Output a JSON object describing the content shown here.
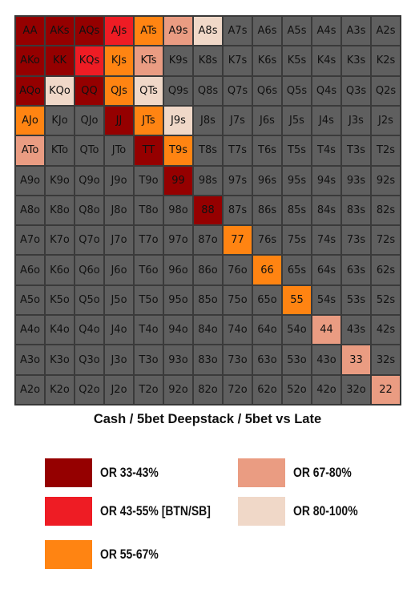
{
  "chart_data": {
    "type": "heatmap",
    "title": "Cash / 5bet Deepstack / 5bet vs Late",
    "colors": {
      "none": "#5f5f5f",
      "c1": "#950000",
      "c2": "#ee1c24",
      "c3": "#ff8412",
      "c4": "#ea9c82",
      "c5": "#f0d8c8"
    },
    "rows": [
      [
        "AA",
        "AKs",
        "AQs",
        "AJs",
        "ATs",
        "A9s",
        "A8s",
        "A7s",
        "A6s",
        "A5s",
        "A4s",
        "A3s",
        "A2s"
      ],
      [
        "AKo",
        "KK",
        "KQs",
        "KJs",
        "KTs",
        "K9s",
        "K8s",
        "K7s",
        "K6s",
        "K5s",
        "K4s",
        "K3s",
        "K2s"
      ],
      [
        "AQo",
        "KQo",
        "QQ",
        "QJs",
        "QTs",
        "Q9s",
        "Q8s",
        "Q7s",
        "Q6s",
        "Q5s",
        "Q4s",
        "Q3s",
        "Q2s"
      ],
      [
        "AJo",
        "KJo",
        "QJo",
        "JJ",
        "JTs",
        "J9s",
        "J8s",
        "J7s",
        "J6s",
        "J5s",
        "J4s",
        "J3s",
        "J2s"
      ],
      [
        "ATo",
        "KTo",
        "QTo",
        "JTo",
        "TT",
        "T9s",
        "T8s",
        "T7s",
        "T6s",
        "T5s",
        "T4s",
        "T3s",
        "T2s"
      ],
      [
        "A9o",
        "K9o",
        "Q9o",
        "J9o",
        "T9o",
        "99",
        "98s",
        "97s",
        "96s",
        "95s",
        "94s",
        "93s",
        "92s"
      ],
      [
        "A8o",
        "K8o",
        "Q8o",
        "J8o",
        "T8o",
        "98o",
        "88",
        "87s",
        "86s",
        "85s",
        "84s",
        "83s",
        "82s"
      ],
      [
        "A7o",
        "K7o",
        "Q7o",
        "J7o",
        "T7o",
        "97o",
        "87o",
        "77",
        "76s",
        "75s",
        "74s",
        "73s",
        "72s"
      ],
      [
        "A6o",
        "K6o",
        "Q6o",
        "J6o",
        "T6o",
        "96o",
        "86o",
        "76o",
        "66",
        "65s",
        "64s",
        "63s",
        "62s"
      ],
      [
        "A5o",
        "K5o",
        "Q5o",
        "J5o",
        "T5o",
        "95o",
        "85o",
        "75o",
        "65o",
        "55",
        "54s",
        "53s",
        "52s"
      ],
      [
        "A4o",
        "K4o",
        "Q4o",
        "J4o",
        "T4o",
        "94o",
        "84o",
        "74o",
        "64o",
        "54o",
        "44",
        "43s",
        "42s"
      ],
      [
        "A3o",
        "K3o",
        "Q3o",
        "J3o",
        "T3o",
        "93o",
        "83o",
        "73o",
        "63o",
        "53o",
        "43o",
        "33",
        "32s"
      ],
      [
        "A2o",
        "K2o",
        "Q2o",
        "J2o",
        "T2o",
        "92o",
        "82o",
        "72o",
        "62o",
        "52o",
        "42o",
        "32o",
        "22"
      ]
    ],
    "cell_colors": {
      "AA": "c1",
      "AKs": "c1",
      "AQs": "c1",
      "AJs": "c2",
      "ATs": "c3",
      "A9s": "c4",
      "A8s": "c5",
      "AKo": "c1",
      "KK": "c1",
      "KQs": "c2",
      "KJs": "c3",
      "KTs": "c4",
      "AQo": "c1",
      "KQo": "c5",
      "QQ": "c1",
      "QJs": "c3",
      "QTs": "c5",
      "AJo": "c3",
      "JJ": "c1",
      "JTs": "c3",
      "J9s": "c5",
      "ATo": "c4",
      "TT": "c1",
      "T9s": "c3",
      "99": "c1",
      "88": "c1",
      "77": "c3",
      "66": "c3",
      "55": "c3",
      "44": "c4",
      "33": "c4",
      "22": "c4"
    },
    "legend": [
      {
        "color": "c1",
        "label": "OR 33-43%"
      },
      {
        "color": "c4",
        "label": "OR 67-80%"
      },
      {
        "color": "c2",
        "label": "OR 43-55% [BTN/SB]"
      },
      {
        "color": "c5",
        "label": "OR 80-100%"
      },
      {
        "color": "c3",
        "label": "OR 55-67%"
      }
    ]
  }
}
